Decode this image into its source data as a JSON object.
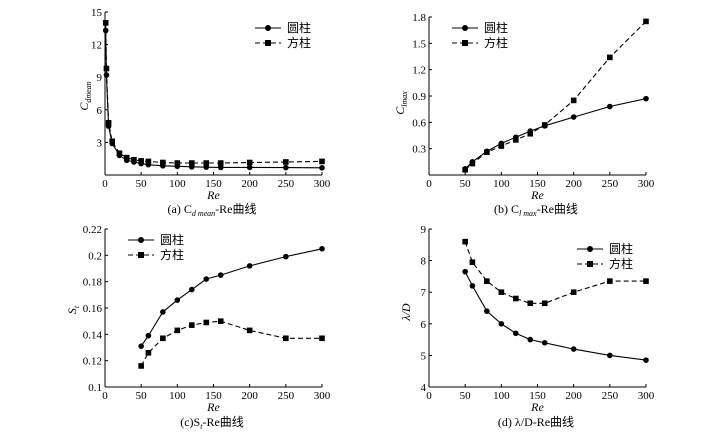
{
  "chart_data": [
    {
      "id": "a",
      "type": "line",
      "caption": "(a) C",
      "caption_sub": "d mean",
      "caption_tail": "-Re曲线",
      "xlabel": "Re",
      "ylabel_main": "C",
      "ylabel_sub": "dmean",
      "xlim": [
        0,
        300
      ],
      "ylim": [
        0,
        15
      ],
      "xticks": [
        0,
        50,
        100,
        150,
        200,
        250,
        300
      ],
      "yticks": [
        3,
        6,
        9,
        12,
        15
      ],
      "series": [
        {
          "name": "圆柱",
          "marker": "circle",
          "dash": false,
          "x": [
            1,
            2,
            5,
            10,
            20,
            30,
            40,
            50,
            60,
            80,
            100,
            120,
            140,
            160,
            200,
            250,
            300
          ],
          "y": [
            13.3,
            9.2,
            4.5,
            2.9,
            1.8,
            1.35,
            1.2,
            1.05,
            0.95,
            0.85,
            0.8,
            0.75,
            0.72,
            0.7,
            0.7,
            0.68,
            0.66
          ]
        },
        {
          "name": "方柱",
          "marker": "square",
          "dash": true,
          "x": [
            1,
            2,
            5,
            10,
            20,
            30,
            40,
            50,
            60,
            80,
            100,
            120,
            140,
            160,
            200,
            250,
            300
          ],
          "y": [
            14.0,
            9.8,
            4.8,
            3.1,
            2.0,
            1.6,
            1.4,
            1.3,
            1.25,
            1.15,
            1.1,
            1.1,
            1.1,
            1.1,
            1.15,
            1.2,
            1.25
          ]
        }
      ]
    },
    {
      "id": "b",
      "type": "line",
      "caption": "(b) C",
      "caption_sub": "l max",
      "caption_tail": "-Re曲线",
      "xlabel": "Re",
      "ylabel_main": "C",
      "ylabel_sub": "lmax",
      "xlim": [
        0,
        300
      ],
      "ylim": [
        0,
        1.8
      ],
      "xticks": [
        0,
        50,
        100,
        150,
        200,
        250,
        300
      ],
      "yticks": [
        0.3,
        0.6,
        0.9,
        1.2,
        1.5,
        1.8
      ],
      "series": [
        {
          "name": "圆柱",
          "marker": "circle",
          "dash": false,
          "x": [
            50,
            60,
            80,
            100,
            120,
            140,
            160,
            200,
            250,
            300
          ],
          "y": [
            0.07,
            0.15,
            0.27,
            0.36,
            0.43,
            0.5,
            0.56,
            0.66,
            0.78,
            0.87
          ]
        },
        {
          "name": "方柱",
          "marker": "square",
          "dash": true,
          "x": [
            50,
            60,
            80,
            100,
            120,
            140,
            160,
            200,
            250,
            300
          ],
          "y": [
            0.06,
            0.13,
            0.26,
            0.33,
            0.4,
            0.47,
            0.57,
            0.85,
            1.34,
            1.75
          ]
        }
      ]
    },
    {
      "id": "c",
      "type": "line",
      "caption": "(c)S",
      "caption_sub": "t",
      "caption_tail": "-Re曲线",
      "xlabel": "Re",
      "ylabel_main": "S",
      "ylabel_sub": "t",
      "xlim": [
        0,
        300
      ],
      "ylim": [
        0.1,
        0.22
      ],
      "xticks": [
        0,
        50,
        100,
        150,
        200,
        250,
        300
      ],
      "yticks": [
        0.1,
        0.12,
        0.14,
        0.16,
        0.18,
        0.2,
        0.22
      ],
      "series": [
        {
          "name": "圆柱",
          "marker": "circle",
          "dash": false,
          "x": [
            50,
            60,
            80,
            100,
            120,
            140,
            160,
            200,
            250,
            300
          ],
          "y": [
            0.131,
            0.139,
            0.157,
            0.166,
            0.174,
            0.182,
            0.185,
            0.192,
            0.199,
            0.205
          ]
        },
        {
          "name": "方柱",
          "marker": "square",
          "dash": true,
          "x": [
            50,
            60,
            80,
            100,
            120,
            140,
            160,
            200,
            250,
            300
          ],
          "y": [
            0.116,
            0.126,
            0.137,
            0.143,
            0.147,
            0.149,
            0.15,
            0.143,
            0.137,
            0.137
          ]
        }
      ]
    },
    {
      "id": "d",
      "type": "line",
      "caption": "(d) λ/D-Re曲线",
      "caption_sub": "",
      "caption_tail": "",
      "xlabel": "Re",
      "ylabel_main": "λ/D",
      "ylabel_sub": "",
      "xlim": [
        0,
        300
      ],
      "ylim": [
        4,
        9
      ],
      "xticks": [
        0,
        50,
        100,
        150,
        200,
        250,
        300
      ],
      "yticks": [
        4,
        5,
        6,
        7,
        8,
        9
      ],
      "series": [
        {
          "name": "圆柱",
          "marker": "circle",
          "dash": false,
          "x": [
            50,
            60,
            80,
            100,
            120,
            140,
            160,
            200,
            250,
            300
          ],
          "y": [
            7.65,
            7.2,
            6.4,
            6.0,
            5.7,
            5.5,
            5.4,
            5.2,
            5.0,
            4.85
          ]
        },
        {
          "name": "方柱",
          "marker": "square",
          "dash": true,
          "x": [
            50,
            60,
            80,
            100,
            120,
            140,
            160,
            200,
            250,
            300
          ],
          "y": [
            8.6,
            7.95,
            7.35,
            7.0,
            6.8,
            6.65,
            6.65,
            7.0,
            7.35,
            7.35
          ]
        }
      ]
    }
  ]
}
